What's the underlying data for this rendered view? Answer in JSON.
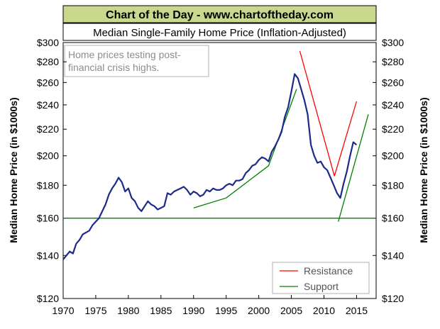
{
  "banner": "Chart of the Day - www.chartoftheday.com",
  "chart_data": {
    "type": "line",
    "title": "Median Single-Family Home Price (Inflation-Adjusted)",
    "annotation": "Home prices testing post-financial crisis highs.",
    "annotation_lines": [
      "Home prices testing post-",
      "financial crisis highs."
    ],
    "ylabel": "Median Home Price (in $1000s)",
    "xlim": [
      1970,
      2018
    ],
    "ylim": [
      120,
      300
    ],
    "y_scale": "log",
    "x_ticks": [
      1970,
      1975,
      1980,
      1985,
      1990,
      1995,
      2000,
      2005,
      2010,
      2015
    ],
    "y_ticks": [
      {
        "value": 120,
        "label": "$120"
      },
      {
        "value": 140,
        "label": "$140"
      },
      {
        "value": 160,
        "label": "$160"
      },
      {
        "value": 180,
        "label": "$180"
      },
      {
        "value": 200,
        "label": "$200"
      },
      {
        "value": 220,
        "label": "$220"
      },
      {
        "value": 240,
        "label": "$240"
      },
      {
        "value": 260,
        "label": "$260"
      },
      {
        "value": 280,
        "label": "$280"
      },
      {
        "value": 300,
        "label": "$300"
      }
    ],
    "grid": false,
    "legend_position": "bottom-right",
    "series": [
      {
        "name": "Median Home Price",
        "color": "#1c2a8c",
        "x": [
          1970.0,
          1970.5,
          1971.0,
          1971.5,
          1972.0,
          1972.5,
          1973.0,
          1973.5,
          1974.0,
          1974.5,
          1975.0,
          1975.5,
          1976.0,
          1976.5,
          1977.0,
          1977.5,
          1978.0,
          1978.5,
          1979.0,
          1979.5,
          1980.0,
          1980.5,
          1981.0,
          1981.5,
          1982.0,
          1982.5,
          1983.0,
          1983.5,
          1984.0,
          1984.5,
          1985.0,
          1985.5,
          1986.0,
          1986.5,
          1987.0,
          1987.5,
          1988.0,
          1988.5,
          1989.0,
          1989.5,
          1990.0,
          1990.5,
          1991.0,
          1991.5,
          1992.0,
          1992.5,
          1993.0,
          1993.5,
          1994.0,
          1994.5,
          1995.0,
          1995.5,
          1996.0,
          1996.5,
          1997.0,
          1997.5,
          1998.0,
          1998.5,
          1999.0,
          1999.5,
          2000.0,
          2000.5,
          2001.0,
          2001.5,
          2002.0,
          2002.5,
          2003.0,
          2003.5,
          2004.0,
          2004.5,
          2005.0,
          2005.5,
          2006.0,
          2006.5,
          2007.0,
          2007.5,
          2008.0,
          2008.5,
          2009.0,
          2009.5,
          2010.0,
          2010.5,
          2011.0,
          2011.5,
          2012.0,
          2012.5,
          2013.0,
          2013.5,
          2014.0,
          2014.5,
          2015.0
        ],
        "y": [
          138,
          140,
          142,
          141,
          146,
          148,
          151,
          152,
          153,
          156,
          158,
          160,
          164,
          168,
          174,
          178,
          181,
          185,
          182,
          176,
          178,
          172,
          170,
          166,
          164,
          167,
          170,
          168,
          167,
          165,
          166,
          167,
          175,
          174,
          176,
          177,
          178,
          179,
          177,
          174,
          176,
          175,
          173,
          174,
          177,
          176,
          178,
          177,
          177,
          178,
          180,
          181,
          180,
          183,
          183,
          184,
          188,
          190,
          193,
          194,
          197,
          199,
          198,
          196,
          203,
          207,
          212,
          218,
          230,
          238,
          252,
          268,
          264,
          254,
          244,
          232,
          208,
          200,
          195,
          196,
          192,
          190,
          185,
          180,
          175,
          172,
          181,
          189,
          200,
          210,
          208
        ]
      }
    ],
    "trendlines": {
      "resistance": {
        "name": "Resistance",
        "color": "#ff0000",
        "segments": [
          [
            [
              2006.3,
              291
            ],
            [
              2011.6,
              186
            ]
          ],
          [
            [
              2011.6,
              186
            ],
            [
              2015.0,
              243
            ]
          ]
        ]
      },
      "support": {
        "name": "Support",
        "color": "#008000",
        "segments": [
          [
            [
              1970.0,
              160
            ],
            [
              2018.0,
              160
            ]
          ],
          [
            [
              1990.0,
              166
            ],
            [
              1995.0,
              172
            ],
            [
              2001.5,
              193
            ],
            [
              2005.8,
              254
            ]
          ],
          [
            [
              2012.2,
              158
            ],
            [
              2016.8,
              232
            ]
          ]
        ]
      }
    },
    "legend": [
      {
        "label": "Resistance",
        "color": "#ff0000"
      },
      {
        "label": "Support",
        "color": "#008000"
      }
    ]
  }
}
